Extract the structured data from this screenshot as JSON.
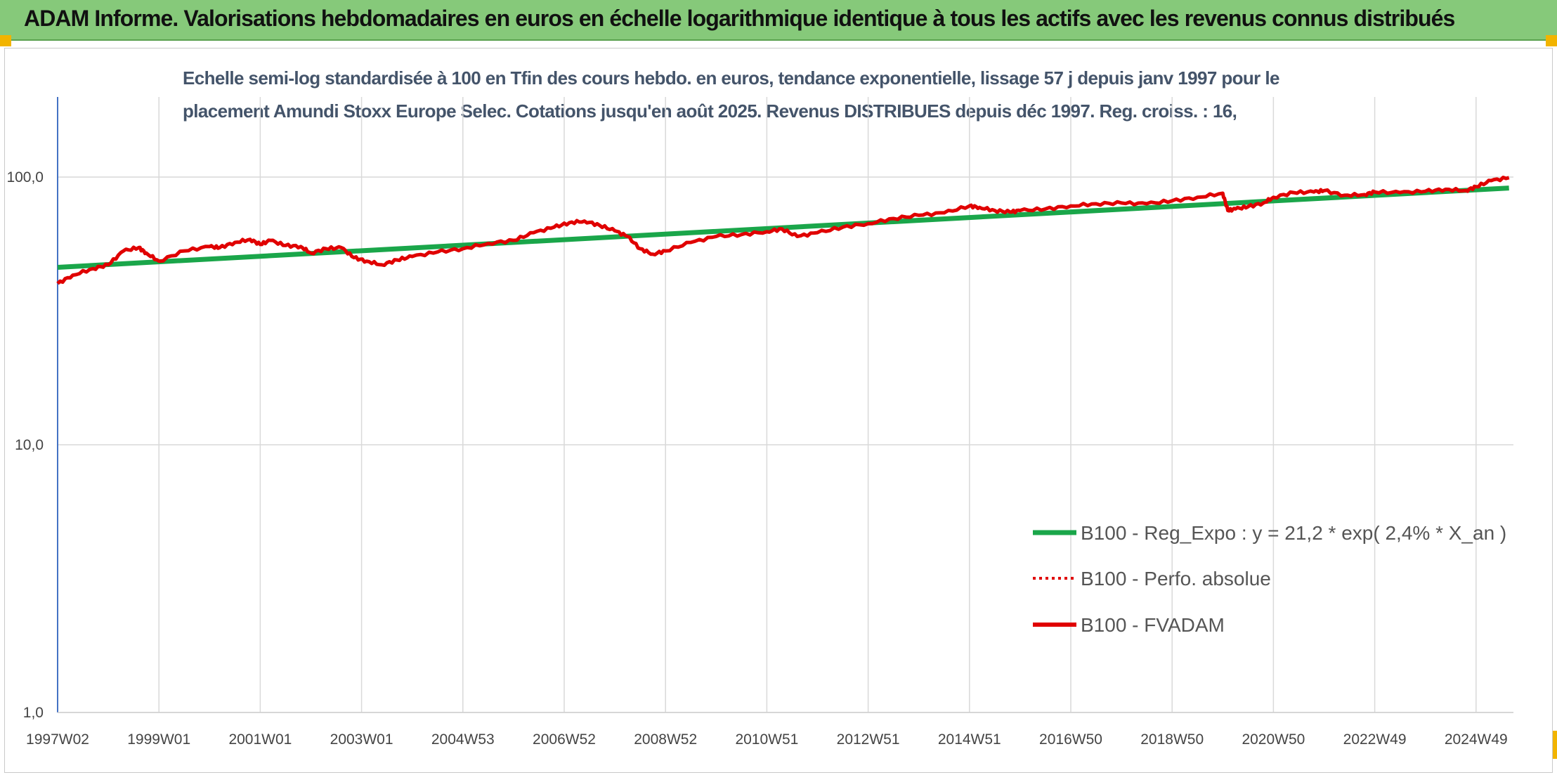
{
  "banner": {
    "title": "ADAM Informe. Valorisations hebdomadaires en euros en échelle logarithmique identique à tous les actifs avec les revenus connus distribués"
  },
  "chart_data": {
    "type": "line",
    "title_lines": [
      "Echelle semi-log standardisée à 100 en Tfin des cours hebdo. en euros, tendance exponentielle, lissage 57 j depuis janv 1997 pour le",
      "placement Amundi Stoxx Europe Selec. Cotations jusqu'en août 2025. Revenus DISTRIBUES depuis déc 1997. Reg. croiss. : 16,"
    ],
    "xlabel": "",
    "ylabel": "",
    "y_scale": "log",
    "ylim": [
      1,
      200
    ],
    "y_ticks": [
      "1,0",
      "10,0",
      "100,0"
    ],
    "x_ticks": [
      "1997W02",
      "1999W01",
      "2001W01",
      "2003W01",
      "2004W53",
      "2006W52",
      "2008W52",
      "2010W51",
      "2012W51",
      "2014W51",
      "2016W50",
      "2018W50",
      "2020W50",
      "2022W49",
      "2024W49"
    ],
    "x_range_years": [
      1997.0,
      2025.65
    ],
    "grid": true,
    "legend_position": "bottom-right",
    "colors": {
      "trend": "#1aa64a",
      "perf": "#e00000",
      "fvadam": "#e00000",
      "grid": "#d9d9d9",
      "axis": "#4472c4"
    },
    "series": [
      {
        "name": "B100 - Reg_Expo : y = 21,2 * exp( 2,4% *  X_an )",
        "style": "solid-thick",
        "x": [
          1997.0,
          2025.65
        ],
        "y": [
          46.0,
          91.0
        ]
      },
      {
        "name": "B100 - Perfo. absolue",
        "style": "dotted",
        "x": [],
        "y": []
      },
      {
        "name": "B100 - FVADAM",
        "style": "solid",
        "x": [
          1997.0,
          1997.3,
          1997.7,
          1998.0,
          1998.3,
          1998.6,
          1998.75,
          1999.0,
          1999.5,
          2000.0,
          2000.2,
          2000.5,
          2000.8,
          2001.0,
          2001.2,
          2001.5,
          2001.8,
          2002.0,
          2002.3,
          2002.6,
          2002.85,
          2003.1,
          2003.4,
          2003.7,
          2004.0,
          2004.5,
          2005.0,
          2005.5,
          2006.0,
          2006.4,
          2006.8,
          2007.1,
          2007.4,
          2007.7,
          2008.0,
          2008.25,
          2008.5,
          2008.75,
          2009.0,
          2009.5,
          2010.0,
          2010.5,
          2011.0,
          2011.3,
          2011.6,
          2012.0,
          2012.5,
          2013.0,
          2013.5,
          2014.0,
          2014.5,
          2015.0,
          2015.2,
          2015.5,
          2015.8,
          2016.0,
          2016.5,
          2017.0,
          2017.5,
          2018.0,
          2018.5,
          2019.0,
          2019.5,
          2020.0,
          2020.1,
          2020.25,
          2020.5,
          2020.8,
          2021.0,
          2021.4,
          2021.8,
          2022.0,
          2022.4,
          2022.8,
          2023.0,
          2023.5,
          2024.0,
          2024.4,
          2024.8,
          2025.0,
          2025.3,
          2025.65
        ],
        "y": [
          40.0,
          43.0,
          45.5,
          47.0,
          53.0,
          54.5,
          52.0,
          48.5,
          53.0,
          55.0,
          54.5,
          57.0,
          58.5,
          56.0,
          58.0,
          55.5,
          55.0,
          52.0,
          54.0,
          54.5,
          50.0,
          48.5,
          47.0,
          49.0,
          50.5,
          52.5,
          54.0,
          56.5,
          58.0,
          62.0,
          65.0,
          67.5,
          68.5,
          66.0,
          63.0,
          60.0,
          54.0,
          51.5,
          53.0,
          57.0,
          60.0,
          61.0,
          62.5,
          64.0,
          60.0,
          62.0,
          65.0,
          67.0,
          70.0,
          72.0,
          73.5,
          78.0,
          77.0,
          75.0,
          74.0,
          75.0,
          76.0,
          78.0,
          79.5,
          80.0,
          79.5,
          81.5,
          84.0,
          87.0,
          75.0,
          76.0,
          77.5,
          80.0,
          84.0,
          87.5,
          88.0,
          89.0,
          85.5,
          86.0,
          88.0,
          87.5,
          88.5,
          90.0,
          89.0,
          92.0,
          97.0,
          99.5
        ]
      }
    ]
  }
}
